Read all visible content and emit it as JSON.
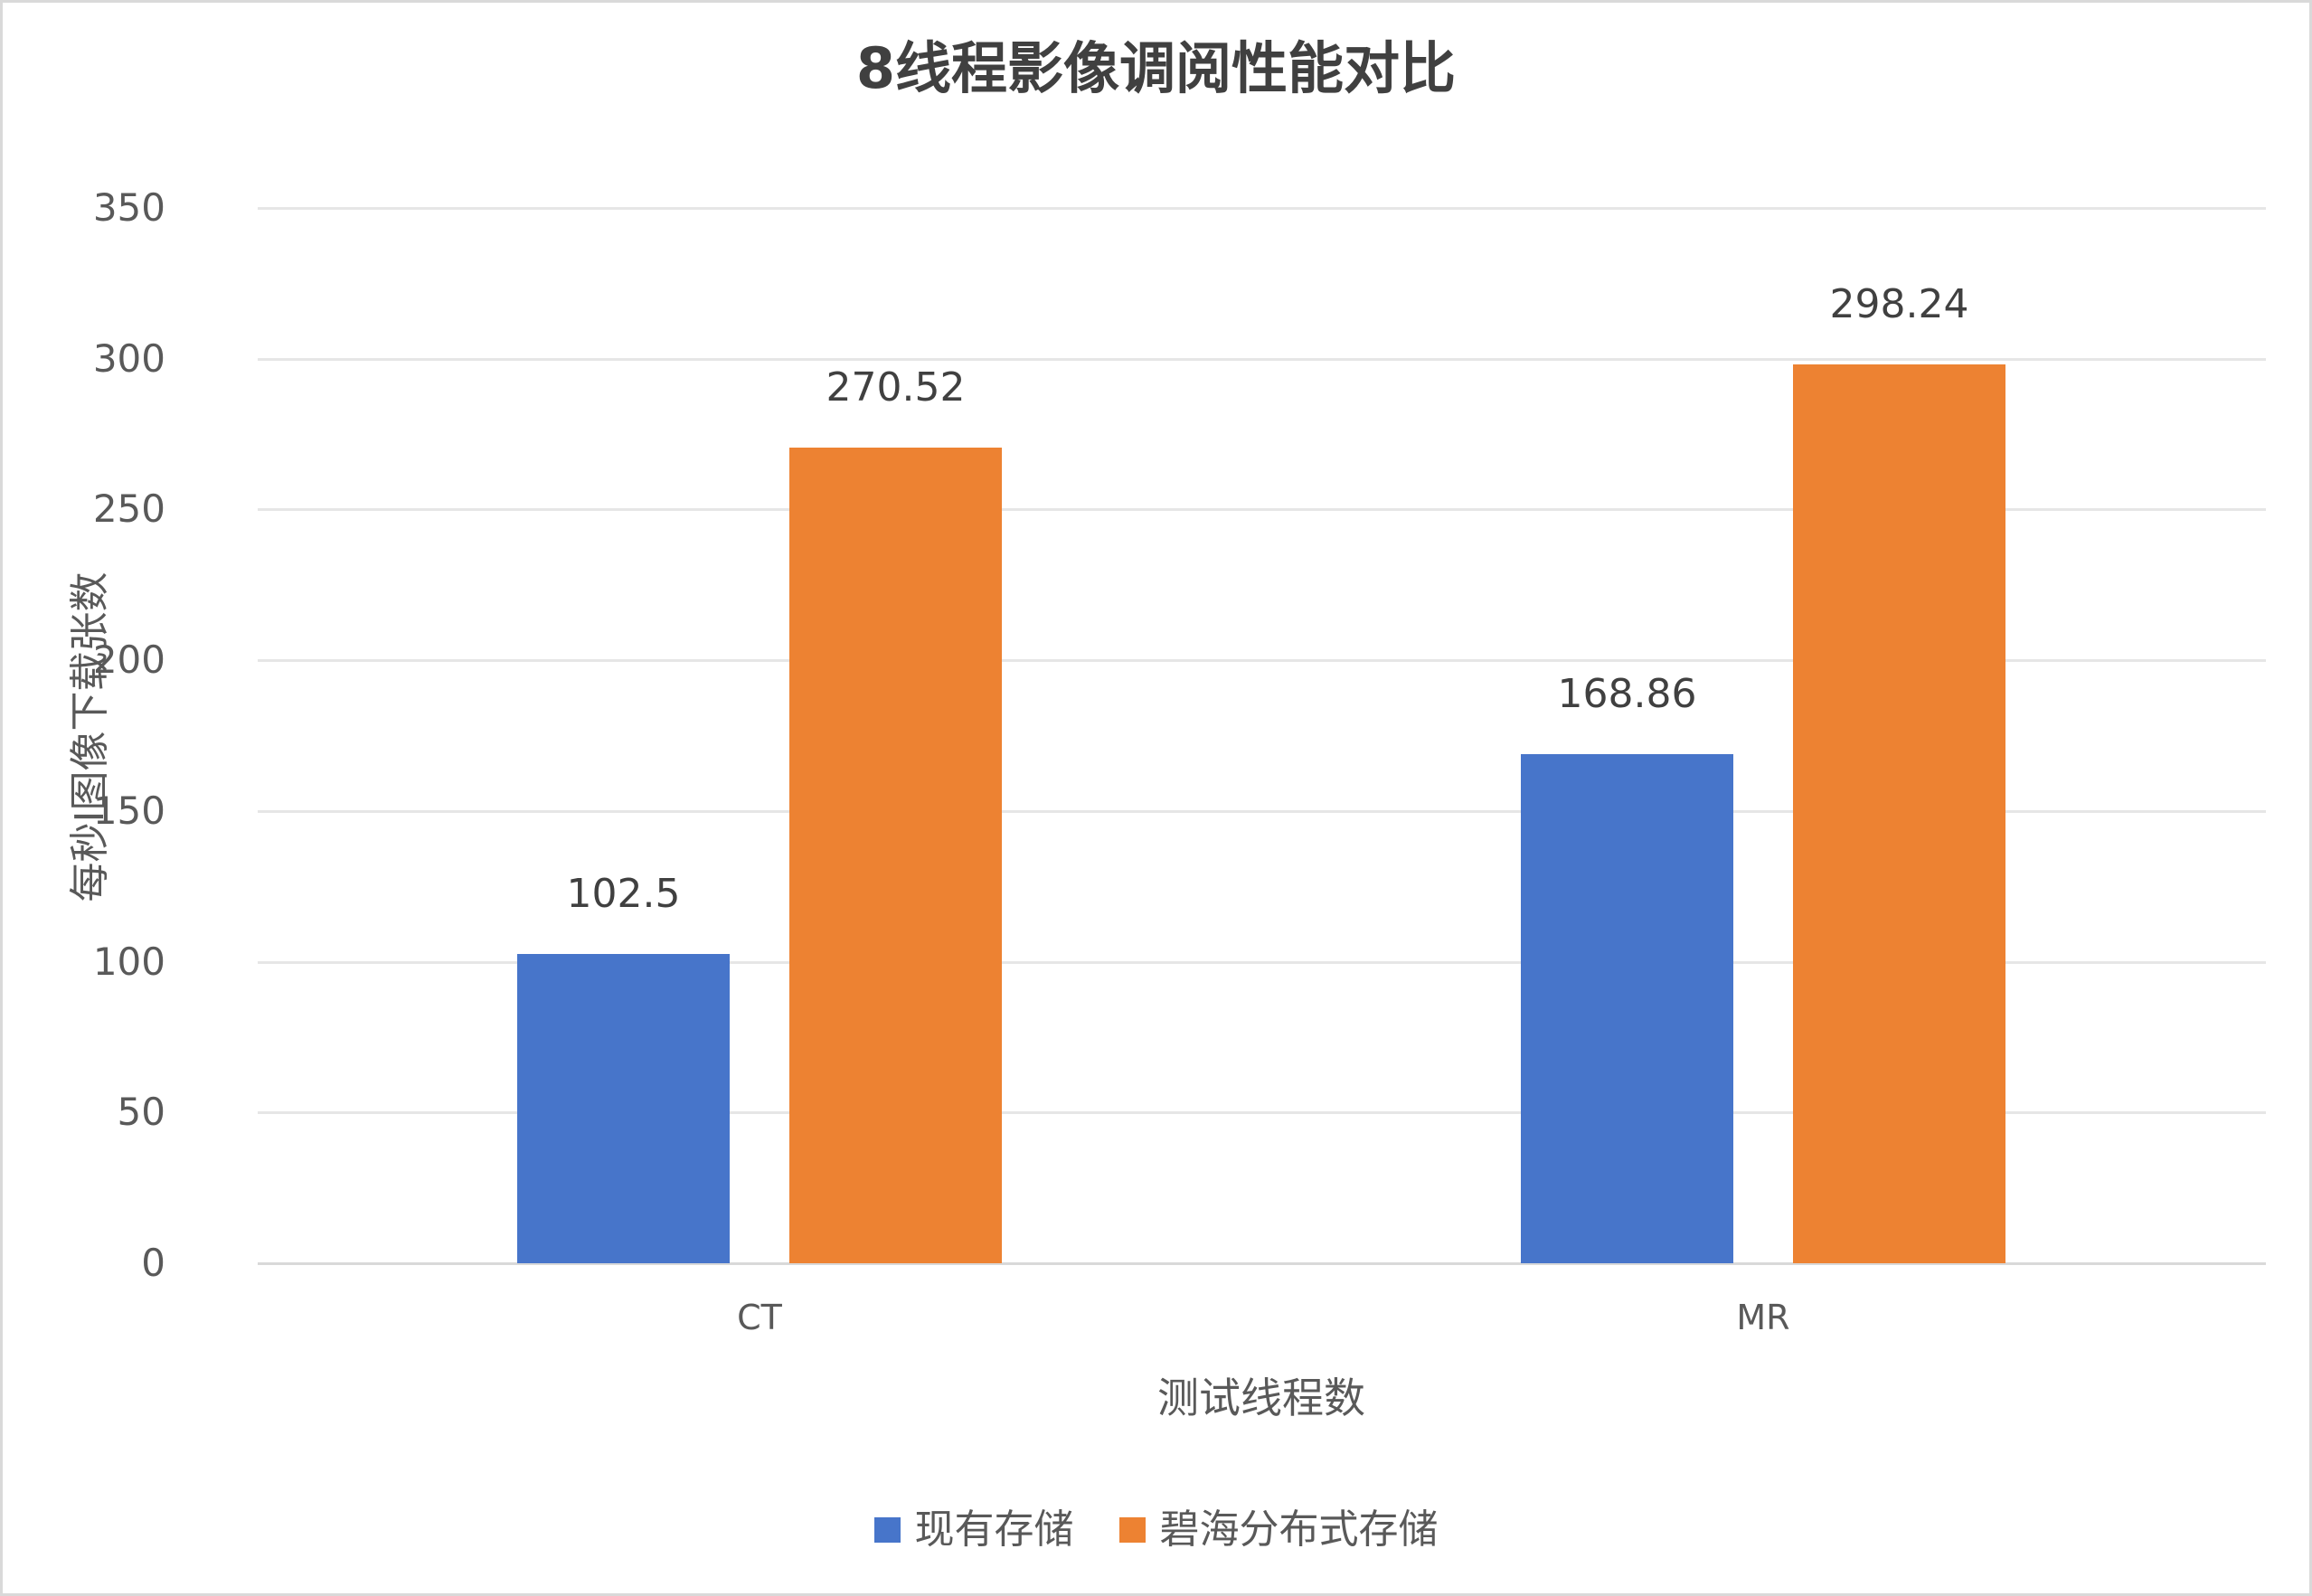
{
  "chart_data": {
    "type": "bar",
    "title": "8线程影像调阅性能对比",
    "xlabel": "测试线程数",
    "ylabel": "每秒I图像下载张数",
    "categories": [
      "CT",
      "MR"
    ],
    "series": [
      {
        "name": "现有存储",
        "color": "#4775CA",
        "values": [
          102.5,
          168.86
        ]
      },
      {
        "name": "碧海分布式存储",
        "color": "#ED8232",
        "values": [
          270.52,
          298.24
        ]
      }
    ],
    "data_labels": [
      [
        "102.5",
        "168.86"
      ],
      [
        "270.52",
        "298.24"
      ]
    ],
    "ylim": [
      0,
      350
    ],
    "yticks": [
      "0",
      "50",
      "100",
      "150",
      "200",
      "250",
      "300",
      "350"
    ],
    "grid": true,
    "legend_position": "bottom"
  },
  "colors": {
    "series_blue": "#4775CA",
    "series_orange": "#ED8232",
    "gridline": "#E6E6E6",
    "border": "#D9D9D9",
    "text": "#595959",
    "title": "#404040"
  }
}
